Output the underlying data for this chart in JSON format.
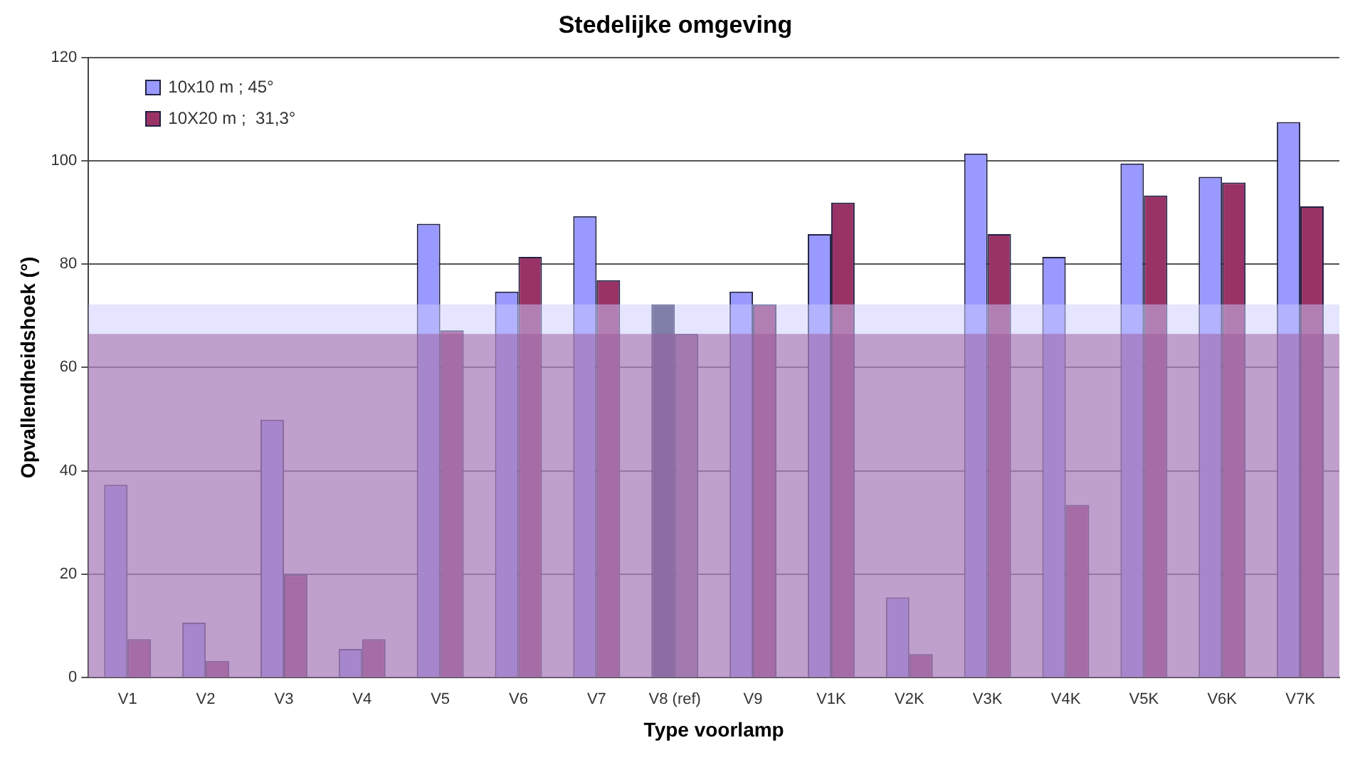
{
  "chart_data": {
    "type": "bar",
    "title": "Stedelijke omgeving",
    "xlabel": "Type voorlamp",
    "ylabel": "Opvallendheidshoek (°)",
    "categories": [
      "V1",
      "V2",
      "V3",
      "V4",
      "V5",
      "V6",
      "V7",
      "V8 (ref)",
      "V9",
      "V1K",
      "V2K",
      "V3K",
      "V4K",
      "V5K",
      "V6K",
      "V7K"
    ],
    "series": [
      {
        "name": "10x10 m ; 45°",
        "color": "#9999ff",
        "colors": [
          "#9999ff",
          "#9999ff",
          "#9999ff",
          "#9999ff",
          "#9999ff",
          "#9999ff",
          "#9999ff",
          "#333355",
          "#9999ff",
          "#9999ff",
          "#9999ff",
          "#9999ff",
          "#9999ff",
          "#9999ff",
          "#9999ff",
          "#9999ff"
        ],
        "values": [
          37.3,
          10.6,
          49.9,
          5.5,
          87.8,
          74.7,
          89.3,
          72.2,
          74.7,
          85.8,
          15.5,
          101.4,
          81.4,
          99.5,
          96.9,
          107.5
        ]
      },
      {
        "name": "10X20 m ;  31,3°",
        "color": "#993366",
        "colors": [
          "#993366",
          "#993366",
          "#993366",
          "#993366",
          "#993366",
          "#993366",
          "#993366",
          "#8a6a8a",
          "#993366",
          "#993366",
          "#993366",
          "#993366",
          "#993366",
          "#993366",
          "#993366",
          "#993366"
        ],
        "values": [
          7.4,
          3.2,
          19.9,
          7.4,
          67.2,
          81.4,
          76.9,
          66.5,
          72.2,
          91.9,
          4.5,
          85.8,
          33.4,
          93.3,
          95.8,
          91.2
        ]
      }
    ],
    "bands": [
      {
        "axis": "y",
        "from": 0,
        "to": 72.2,
        "color": "#ccccff"
      },
      {
        "axis": "y",
        "from": 0,
        "to": 66.5,
        "color": "#9a5a9a"
      }
    ],
    "ylim": [
      0,
      120
    ],
    "yticks": [
      0,
      20,
      40,
      60,
      80,
      100,
      120
    ],
    "grid": "y",
    "legend": "top left"
  }
}
